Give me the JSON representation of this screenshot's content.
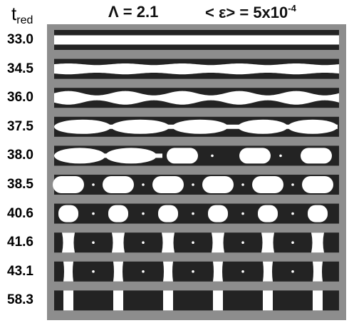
{
  "header": {
    "t_symbol": "t",
    "t_subscript": "red",
    "lambda_text": "Λ = 2.1",
    "strain_text": "< ε> = 5x10",
    "strain_exponent": "-4"
  },
  "rows": [
    {
      "label": "33.0",
      "stage": "stripe",
      "amp": 0.0
    },
    {
      "label": "34.5",
      "stage": "stripe",
      "amp": 0.08
    },
    {
      "label": "36.0",
      "stage": "stripe",
      "amp": 0.22
    },
    {
      "label": "37.5",
      "stage": "pinch"
    },
    {
      "label": "38.0",
      "stage": "capsule-mixed"
    },
    {
      "label": "38.5",
      "stage": "capsule"
    },
    {
      "label": "40.6",
      "stage": "round"
    },
    {
      "label": "41.6",
      "stage": "barrel"
    },
    {
      "label": "43.1",
      "stage": "bar"
    },
    {
      "label": "58.3",
      "stage": "rect"
    }
  ],
  "colors": {
    "frame": "#8d8d8d",
    "dark": "#232323",
    "light": "#ffffff"
  }
}
